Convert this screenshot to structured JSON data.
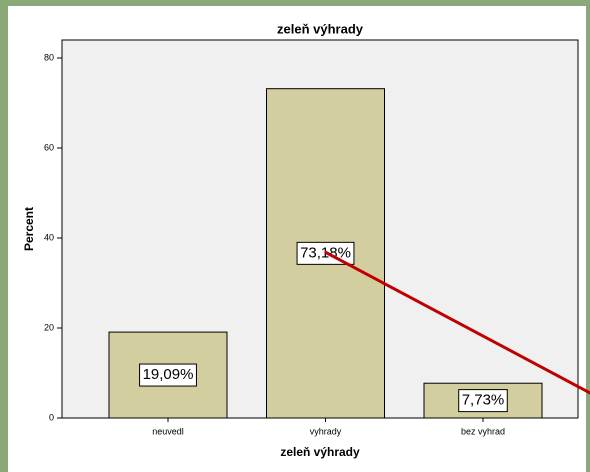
{
  "chart_data": {
    "type": "bar",
    "title": "zeleň výhrady",
    "categories": [
      "neuvedl",
      "vyhrady",
      "bez vyhrad"
    ],
    "values": [
      19.09,
      73.18,
      7.73
    ],
    "value_labels": [
      "19,09%",
      "73,18%",
      "7,73%"
    ],
    "color": "#d3cea0",
    "xlabel": "zeleň výhrady",
    "ylabel": "Percent",
    "ylim": [
      0,
      84
    ],
    "yticks": [
      0,
      20,
      40,
      60,
      80
    ],
    "grid": false
  }
}
